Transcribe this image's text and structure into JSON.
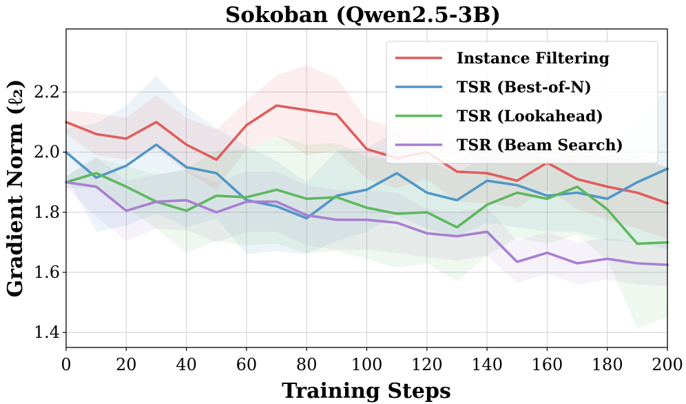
{
  "chart_data": {
    "type": "line",
    "title": "Sokoban (Qwen2.5-3B)",
    "xlabel": "Training Steps",
    "ylabel": "Gradient Norm (ℓ₂)",
    "xlim": [
      0,
      200
    ],
    "ylim": [
      1.35,
      2.41
    ],
    "xticks": [
      0,
      20,
      40,
      60,
      80,
      100,
      120,
      140,
      160,
      180,
      200
    ],
    "yticks": [
      1.4,
      1.6,
      1.8,
      2.0,
      2.2
    ],
    "ytick_labels": [
      "1.4",
      "1.6",
      "1.8",
      "2.0",
      "2.2"
    ],
    "grid": true,
    "legend_position": "top-right",
    "x": [
      0,
      10,
      20,
      30,
      40,
      50,
      60,
      70,
      80,
      90,
      100,
      110,
      120,
      130,
      140,
      150,
      160,
      170,
      180,
      190,
      200
    ],
    "series": [
      {
        "name": "Instance Filtering",
        "color": "#e05c5c",
        "values": [
          2.1,
          2.06,
          2.045,
          2.1,
          2.025,
          1.975,
          2.09,
          2.155,
          2.14,
          2.125,
          2.01,
          1.98,
          2.0,
          1.935,
          1.93,
          1.905,
          1.965,
          1.91,
          1.885,
          1.865,
          1.83
        ],
        "band": [
          0.04,
          0.07,
          0.07,
          0.09,
          0.09,
          0.1,
          0.08,
          0.1,
          0.15,
          0.12,
          0.1,
          0.1,
          0.09,
          0.1,
          0.1,
          0.09,
          0.09,
          0.1,
          0.11,
          0.12,
          0.12
        ]
      },
      {
        "name": "TSR (Best-of-N)",
        "color": "#5096c8",
        "values": [
          2.0,
          1.915,
          1.955,
          2.025,
          1.95,
          1.93,
          1.84,
          1.82,
          1.78,
          1.855,
          1.875,
          1.93,
          1.865,
          1.84,
          1.905,
          1.89,
          1.855,
          1.865,
          1.845,
          1.9,
          1.945
        ],
        "band": [
          0.08,
          0.18,
          0.2,
          0.23,
          0.2,
          0.15,
          0.18,
          0.15,
          0.12,
          0.15,
          0.14,
          0.14,
          0.12,
          0.12,
          0.14,
          0.14,
          0.12,
          0.13,
          0.14,
          0.2,
          0.27
        ]
      },
      {
        "name": "TSR (Lookahead)",
        "color": "#5cb85c",
        "values": [
          1.9,
          1.93,
          1.885,
          1.835,
          1.805,
          1.855,
          1.85,
          1.875,
          1.845,
          1.85,
          1.815,
          1.795,
          1.8,
          1.75,
          1.825,
          1.865,
          1.845,
          1.885,
          1.81,
          1.695,
          1.7
        ],
        "band": [
          0.02,
          0.05,
          0.07,
          0.09,
          0.14,
          0.15,
          0.16,
          0.18,
          0.18,
          0.18,
          0.17,
          0.18,
          0.17,
          0.18,
          0.17,
          0.15,
          0.15,
          0.16,
          0.17,
          0.28,
          0.25
        ]
      },
      {
        "name": "TSR (Beam Search)",
        "color": "#a67fd0",
        "values": [
          1.9,
          1.885,
          1.805,
          1.835,
          1.84,
          1.8,
          1.835,
          1.835,
          1.79,
          1.775,
          1.775,
          1.765,
          1.73,
          1.72,
          1.735,
          1.635,
          1.665,
          1.63,
          1.645,
          1.63,
          1.625
        ],
        "band": [
          0.02,
          0.1,
          0.1,
          0.09,
          0.1,
          0.1,
          0.1,
          0.1,
          0.1,
          0.1,
          0.1,
          0.1,
          0.08,
          0.08,
          0.08,
          0.07,
          0.07,
          0.07,
          0.07,
          0.07,
          0.07
        ]
      }
    ]
  }
}
